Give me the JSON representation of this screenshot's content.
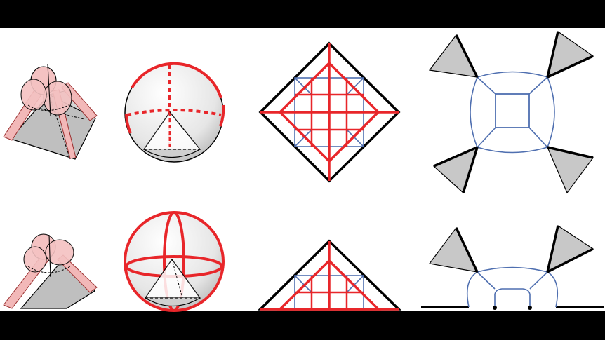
{
  "layout": {
    "top_band_color": "#000000",
    "bottom_band_color": "#000000",
    "panel_color": "#ffffff"
  },
  "colors": {
    "red": "#e8262a",
    "black": "#000000",
    "blue": "#4f6fb0",
    "gray_fill": "#c8c8c8",
    "pink_fill": "#f2b8b8",
    "pink_stroke": "#c84040",
    "sphere_light": "#ffffff",
    "sphere_dark": "#c7c7c7"
  },
  "rows": [
    {
      "name": "full-configuration",
      "panels": [
        "pyramid-with-lobes",
        "sphere-with-tetrahedral-cone",
        "square-in-diamond-network",
        "trivalent-graph-with-four-wedges"
      ]
    },
    {
      "name": "half-configuration",
      "panels": [
        "half-pyramid-with-lobes",
        "sphere-with-meridians-and-cone",
        "half-diamond-network",
        "graph-with-boundary-and-two-wedges"
      ]
    }
  ]
}
